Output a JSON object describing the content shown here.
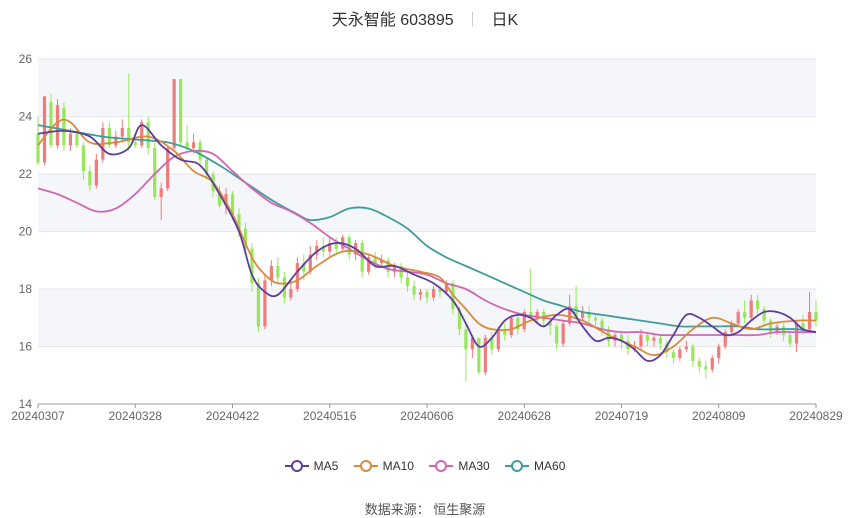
{
  "title": {
    "name": "天永智能 603895",
    "period": "日K"
  },
  "source": "数据来源： 恒生聚源",
  "colors": {
    "up": "#f07b7b",
    "down": "#98e65a",
    "grid": "#e6e6e6",
    "band": "#f5f6fa",
    "axis": "#666666"
  },
  "chart_data": {
    "type": "candlestick",
    "title": "天永智能 603895 日K",
    "ylim": [
      14,
      26
    ],
    "yticks": [
      14,
      16,
      18,
      20,
      22,
      24,
      26
    ],
    "xtick_labels": [
      "20240307",
      "20240328",
      "20240422",
      "20240516",
      "20240606",
      "20240628",
      "20240719",
      "20240809",
      "20240829"
    ],
    "xtick_index": [
      0,
      15,
      30,
      45,
      60,
      75,
      90,
      105,
      120
    ],
    "n_days": 121,
    "legend_position": "bottom",
    "ma_series": [
      {
        "name": "MA5",
        "color": "#5d3e9d",
        "anchors": [
          [
            0,
            23.4
          ],
          [
            4,
            23.5
          ],
          [
            8,
            23.3
          ],
          [
            11,
            22.7
          ],
          [
            14,
            22.9
          ],
          [
            16,
            23.7
          ],
          [
            19,
            23.0
          ],
          [
            22,
            22.5
          ],
          [
            25,
            22.3
          ],
          [
            28,
            21.3
          ],
          [
            31,
            20.0
          ],
          [
            33,
            18.5
          ],
          [
            35,
            17.9
          ],
          [
            37,
            17.8
          ],
          [
            40,
            18.6
          ],
          [
            43,
            19.3
          ],
          [
            46,
            19.6
          ],
          [
            49,
            19.4
          ],
          [
            52,
            18.8
          ],
          [
            55,
            18.8
          ],
          [
            58,
            18.5
          ],
          [
            61,
            18.2
          ],
          [
            64,
            17.6
          ],
          [
            66,
            16.8
          ],
          [
            68,
            16.0
          ],
          [
            70,
            16.3
          ],
          [
            72,
            16.9
          ],
          [
            74,
            17.1
          ],
          [
            76,
            17.0
          ],
          [
            78,
            16.7
          ],
          [
            80,
            17.1
          ],
          [
            82,
            17.3
          ],
          [
            84,
            16.7
          ],
          [
            86,
            16.2
          ],
          [
            88,
            16.3
          ],
          [
            90,
            16.2
          ],
          [
            92,
            15.9
          ],
          [
            94,
            15.5
          ],
          [
            96,
            15.7
          ],
          [
            98,
            16.4
          ],
          [
            100,
            17.1
          ],
          [
            102,
            17.0
          ],
          [
            104,
            16.7
          ],
          [
            106,
            16.4
          ],
          [
            108,
            16.5
          ],
          [
            110,
            16.9
          ],
          [
            112,
            17.2
          ],
          [
            114,
            17.2
          ],
          [
            116,
            17.0
          ],
          [
            118,
            16.6
          ],
          [
            120,
            16.5
          ]
        ]
      },
      {
        "name": "MA10",
        "color": "#d98b3b",
        "anchors": [
          [
            0,
            23.0
          ],
          [
            3,
            23.8
          ],
          [
            5,
            23.8
          ],
          [
            8,
            23.1
          ],
          [
            12,
            23.1
          ],
          [
            17,
            23.3
          ],
          [
            21,
            22.8
          ],
          [
            24,
            22.1
          ],
          [
            27,
            21.7
          ],
          [
            30,
            20.6
          ],
          [
            33,
            19.1
          ],
          [
            35,
            18.5
          ],
          [
            37,
            18.2
          ],
          [
            40,
            18.3
          ],
          [
            43,
            18.8
          ],
          [
            47,
            19.3
          ],
          [
            51,
            19.2
          ],
          [
            55,
            18.8
          ],
          [
            59,
            18.6
          ],
          [
            62,
            18.4
          ],
          [
            64,
            17.8
          ],
          [
            66,
            17.3
          ],
          [
            68,
            16.8
          ],
          [
            70,
            16.6
          ],
          [
            73,
            16.6
          ],
          [
            76,
            16.9
          ],
          [
            80,
            17.1
          ],
          [
            84,
            16.9
          ],
          [
            88,
            16.4
          ],
          [
            92,
            16.0
          ],
          [
            95,
            15.7
          ],
          [
            98,
            16.0
          ],
          [
            101,
            16.6
          ],
          [
            104,
            17.0
          ],
          [
            107,
            16.8
          ],
          [
            110,
            16.6
          ],
          [
            113,
            16.8
          ],
          [
            117,
            16.9
          ],
          [
            120,
            16.9
          ]
        ]
      },
      {
        "name": "MA30",
        "color": "#d266b5",
        "anchors": [
          [
            0,
            21.5
          ],
          [
            3,
            21.3
          ],
          [
            6,
            21.0
          ],
          [
            9,
            20.7
          ],
          [
            12,
            20.8
          ],
          [
            15,
            21.3
          ],
          [
            18,
            22.0
          ],
          [
            21,
            22.6
          ],
          [
            24,
            22.8
          ],
          [
            27,
            22.7
          ],
          [
            30,
            22.1
          ],
          [
            33,
            21.5
          ],
          [
            36,
            21.0
          ],
          [
            39,
            20.7
          ],
          [
            42,
            20.3
          ],
          [
            45,
            19.8
          ],
          [
            48,
            19.4
          ],
          [
            51,
            19.0
          ],
          [
            54,
            18.7
          ],
          [
            57,
            18.6
          ],
          [
            60,
            18.5
          ],
          [
            63,
            18.2
          ],
          [
            66,
            18.0
          ],
          [
            69,
            17.6
          ],
          [
            72,
            17.3
          ],
          [
            75,
            17.1
          ],
          [
            78,
            17.0
          ],
          [
            81,
            16.9
          ],
          [
            84,
            16.8
          ],
          [
            87,
            16.6
          ],
          [
            90,
            16.5
          ],
          [
            93,
            16.5
          ],
          [
            96,
            16.4
          ],
          [
            99,
            16.4
          ],
          [
            102,
            16.4
          ],
          [
            105,
            16.4
          ],
          [
            108,
            16.4
          ],
          [
            111,
            16.4
          ],
          [
            114,
            16.5
          ],
          [
            117,
            16.5
          ],
          [
            120,
            16.5
          ]
        ]
      },
      {
        "name": "MA60",
        "color": "#3e9d9c",
        "anchors": [
          [
            0,
            23.7
          ],
          [
            5,
            23.5
          ],
          [
            10,
            23.3
          ],
          [
            15,
            23.2
          ],
          [
            20,
            23.1
          ],
          [
            24,
            22.8
          ],
          [
            28,
            22.3
          ],
          [
            32,
            21.7
          ],
          [
            36,
            21.1
          ],
          [
            40,
            20.6
          ],
          [
            42,
            20.4
          ],
          [
            45,
            20.5
          ],
          [
            48,
            20.8
          ],
          [
            51,
            20.8
          ],
          [
            54,
            20.5
          ],
          [
            57,
            20.1
          ],
          [
            60,
            19.5
          ],
          [
            63,
            19.1
          ],
          [
            66,
            18.8
          ],
          [
            69,
            18.5
          ],
          [
            72,
            18.2
          ],
          [
            75,
            17.9
          ],
          [
            78,
            17.6
          ],
          [
            81,
            17.4
          ],
          [
            84,
            17.2
          ],
          [
            87,
            17.1
          ],
          [
            90,
            17.0
          ],
          [
            93,
            16.9
          ],
          [
            96,
            16.8
          ],
          [
            99,
            16.7
          ],
          [
            102,
            16.7
          ],
          [
            105,
            16.7
          ],
          [
            108,
            16.7
          ],
          [
            111,
            16.6
          ],
          [
            114,
            16.6
          ],
          [
            117,
            16.6
          ],
          [
            120,
            16.5
          ]
        ]
      }
    ],
    "ohlc": [
      [
        23.4,
        22.4,
        24.0,
        22.3
      ],
      [
        22.4,
        24.7,
        24.7,
        22.3
      ],
      [
        24.5,
        23.0,
        24.8,
        22.9
      ],
      [
        23.0,
        24.4,
        24.6,
        22.9
      ],
      [
        24.3,
        23.0,
        24.5,
        22.8
      ],
      [
        23.0,
        23.4,
        23.6,
        22.8
      ],
      [
        23.4,
        23.0,
        23.6,
        22.9
      ],
      [
        23.0,
        22.1,
        23.1,
        21.8
      ],
      [
        22.1,
        21.6,
        22.3,
        21.4
      ],
      [
        21.6,
        22.5,
        22.7,
        21.5
      ],
      [
        22.5,
        23.6,
        23.8,
        22.4
      ],
      [
        23.6,
        23.0,
        23.8,
        22.9
      ],
      [
        23.0,
        23.3,
        23.5,
        22.9
      ],
      [
        23.3,
        23.6,
        23.9,
        23.1
      ],
      [
        23.6,
        23.1,
        25.5,
        22.8
      ],
      [
        23.1,
        23.0,
        23.3,
        22.9
      ],
      [
        23.0,
        23.8,
        23.9,
        22.9
      ],
      [
        23.8,
        22.9,
        24.0,
        22.7
      ],
      [
        22.9,
        21.2,
        23.1,
        21.1
      ],
      [
        21.2,
        21.5,
        21.7,
        20.4
      ],
      [
        21.5,
        22.9,
        23.0,
        21.4
      ],
      [
        22.9,
        25.3,
        25.3,
        22.8
      ],
      [
        25.3,
        23.1,
        25.3,
        23.0
      ],
      [
        23.1,
        22.9,
        23.7,
        22.8
      ],
      [
        22.9,
        23.1,
        23.4,
        22.7
      ],
      [
        23.1,
        22.5,
        23.2,
        22.3
      ],
      [
        22.5,
        22.0,
        22.6,
        21.8
      ],
      [
        22.0,
        21.4,
        22.1,
        21.2
      ],
      [
        21.4,
        20.9,
        21.6,
        20.8
      ],
      [
        20.9,
        21.3,
        21.5,
        20.6
      ],
      [
        21.3,
        20.6,
        21.4,
        20.4
      ],
      [
        20.6,
        20.1,
        20.8,
        19.8
      ],
      [
        20.1,
        19.4,
        20.3,
        19.2
      ],
      [
        19.4,
        18.2,
        19.6,
        17.9
      ],
      [
        18.2,
        16.7,
        18.4,
        16.5
      ],
      [
        16.7,
        18.3,
        18.5,
        16.6
      ],
      [
        18.3,
        18.8,
        19.0,
        18.1
      ],
      [
        18.8,
        18.4,
        19.1,
        18.2
      ],
      [
        18.4,
        17.7,
        18.6,
        17.5
      ],
      [
        17.7,
        18.0,
        18.3,
        17.6
      ],
      [
        18.0,
        18.9,
        19.1,
        17.9
      ],
      [
        18.9,
        18.6,
        19.2,
        18.3
      ],
      [
        18.6,
        19.2,
        19.5,
        18.5
      ],
      [
        19.2,
        19.5,
        19.7,
        19.0
      ],
      [
        19.5,
        19.3,
        19.8,
        19.1
      ],
      [
        19.3,
        19.6,
        19.8,
        19.1
      ],
      [
        19.6,
        19.4,
        19.8,
        19.2
      ],
      [
        19.4,
        19.8,
        19.9,
        19.3
      ],
      [
        19.8,
        19.2,
        19.9,
        19.0
      ],
      [
        19.2,
        19.6,
        19.7,
        19.0
      ],
      [
        19.6,
        18.6,
        19.7,
        18.4
      ],
      [
        18.6,
        19.1,
        19.2,
        18.5
      ],
      [
        19.1,
        18.9,
        19.3,
        18.7
      ],
      [
        18.9,
        19.0,
        19.2,
        18.8
      ],
      [
        19.0,
        18.6,
        19.1,
        18.4
      ],
      [
        18.6,
        18.8,
        18.9,
        18.4
      ],
      [
        18.8,
        18.4,
        18.9,
        18.2
      ],
      [
        18.4,
        18.1,
        18.6,
        17.9
      ],
      [
        18.1,
        17.8,
        18.3,
        17.6
      ],
      [
        17.8,
        17.9,
        18.0,
        17.6
      ],
      [
        17.9,
        17.7,
        18.0,
        17.5
      ],
      [
        17.7,
        18.0,
        18.1,
        17.6
      ],
      [
        18.0,
        17.9,
        18.1,
        17.7
      ],
      [
        17.9,
        18.2,
        18.3,
        17.8
      ],
      [
        18.2,
        17.3,
        18.3,
        17.1
      ],
      [
        17.3,
        16.6,
        17.4,
        16.4
      ],
      [
        16.6,
        15.9,
        16.8,
        14.8
      ],
      [
        15.9,
        16.3,
        16.4,
        15.6
      ],
      [
        16.3,
        15.1,
        16.3,
        15.0
      ],
      [
        15.1,
        16.3,
        16.4,
        15.0
      ],
      [
        16.3,
        15.9,
        16.5,
        15.7
      ],
      [
        15.9,
        16.6,
        16.7,
        15.8
      ],
      [
        16.6,
        16.4,
        16.8,
        16.2
      ],
      [
        16.4,
        17.0,
        17.1,
        16.3
      ],
      [
        17.0,
        16.6,
        17.2,
        16.4
      ],
      [
        16.6,
        17.2,
        17.3,
        16.5
      ],
      [
        17.2,
        17.0,
        18.7,
        16.9
      ],
      [
        17.0,
        17.2,
        17.3,
        16.8
      ],
      [
        17.2,
        16.9,
        17.3,
        16.7
      ],
      [
        16.9,
        16.7,
        17.0,
        16.4
      ],
      [
        16.7,
        16.1,
        16.8,
        15.9
      ],
      [
        16.1,
        16.8,
        16.9,
        16.0
      ],
      [
        16.8,
        17.4,
        17.8,
        16.7
      ],
      [
        17.4,
        17.0,
        18.1,
        16.9
      ],
      [
        17.0,
        17.2,
        17.4,
        16.9
      ],
      [
        17.2,
        17.0,
        17.4,
        16.8
      ],
      [
        17.0,
        16.9,
        17.1,
        16.7
      ],
      [
        16.9,
        16.6,
        17.0,
        16.4
      ],
      [
        16.6,
        16.2,
        16.7,
        16.0
      ],
      [
        16.2,
        16.4,
        16.5,
        16.0
      ],
      [
        16.4,
        16.2,
        16.5,
        15.9
      ],
      [
        16.2,
        15.9,
        16.4,
        15.7
      ],
      [
        15.9,
        16.0,
        16.2,
        15.8
      ],
      [
        16.0,
        16.4,
        16.6,
        15.9
      ],
      [
        16.4,
        16.2,
        16.5,
        16.0
      ],
      [
        16.2,
        16.3,
        16.4,
        16.0
      ],
      [
        16.3,
        16.1,
        16.4,
        15.9
      ],
      [
        16.1,
        15.8,
        16.2,
        15.6
      ],
      [
        15.8,
        15.6,
        15.9,
        15.4
      ],
      [
        15.6,
        15.9,
        16.0,
        15.5
      ],
      [
        15.9,
        16.0,
        16.2,
        15.8
      ],
      [
        16.0,
        15.5,
        16.1,
        15.3
      ],
      [
        15.5,
        15.3,
        15.6,
        15.1
      ],
      [
        15.3,
        15.2,
        15.5,
        14.9
      ],
      [
        15.2,
        15.6,
        15.7,
        15.1
      ],
      [
        15.6,
        16.0,
        16.1,
        15.4
      ],
      [
        16.0,
        16.5,
        16.6,
        15.9
      ],
      [
        16.5,
        16.8,
        16.9,
        16.4
      ],
      [
        16.8,
        17.2,
        17.3,
        16.7
      ],
      [
        17.2,
        17.0,
        17.6,
        16.8
      ],
      [
        17.0,
        17.6,
        17.8,
        16.9
      ],
      [
        17.6,
        17.3,
        17.8,
        17.1
      ],
      [
        17.3,
        16.9,
        17.4,
        16.7
      ],
      [
        16.9,
        16.5,
        17.0,
        16.3
      ],
      [
        16.5,
        16.7,
        16.8,
        16.4
      ],
      [
        16.7,
        16.4,
        16.8,
        16.2
      ],
      [
        16.4,
        16.1,
        16.5,
        16.0
      ],
      [
        16.1,
        16.8,
        16.9,
        15.8
      ],
      [
        16.8,
        16.6,
        17.1,
        16.4
      ],
      [
        16.6,
        17.2,
        17.9,
        16.5
      ],
      [
        17.2,
        16.9,
        17.6,
        16.7
      ]
    ]
  },
  "legend": [
    {
      "label": "MA5",
      "color": "#5d3e9d"
    },
    {
      "label": "MA10",
      "color": "#d98b3b"
    },
    {
      "label": "MA30",
      "color": "#d266b5"
    },
    {
      "label": "MA60",
      "color": "#3e9d9c"
    }
  ]
}
